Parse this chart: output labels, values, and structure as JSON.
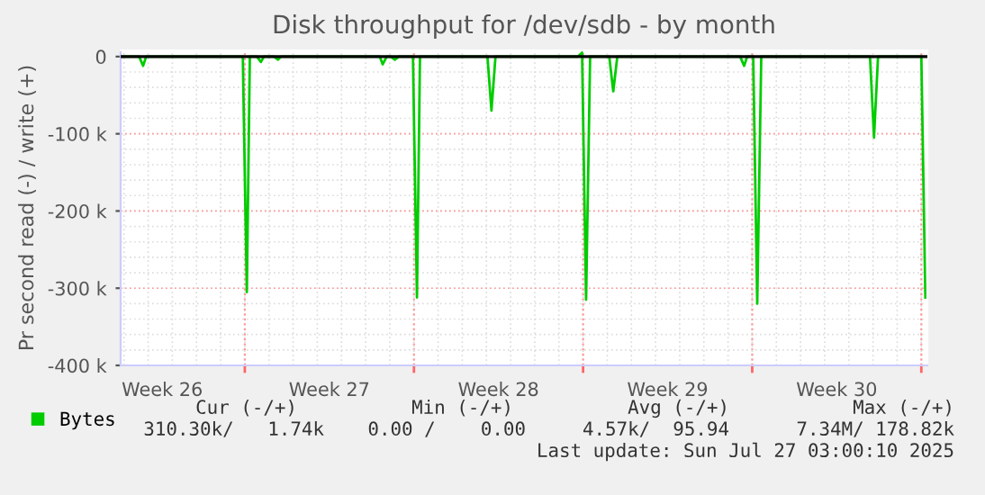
{
  "chart_data": {
    "type": "line",
    "title": "Disk throughput for /dev/sdb - by month",
    "ylabel": "Pr second read (-) / write (+)",
    "xlim": [
      "2025-06-24T20:40",
      "2025-07-28T06:00"
    ],
    "ylim": [
      -400000,
      8000
    ],
    "xticks": [
      {
        "value": "2025-06-26T14:00",
        "label": "Week 26"
      },
      {
        "value": "2025-07-03T12:00",
        "label": "Week 27"
      },
      {
        "value": "2025-07-10T12:00",
        "label": "Week 28"
      },
      {
        "value": "2025-07-17T12:00",
        "label": "Week 29"
      },
      {
        "value": "2025-07-24T12:00",
        "label": "Week 30"
      },
      {
        "value": "2025-06-30",
        "label": null
      },
      {
        "value": "2025-07-07",
        "label": null
      },
      {
        "value": "2025-07-14",
        "label": null
      },
      {
        "value": "2025-07-21",
        "label": null
      },
      {
        "value": "2025-07-28",
        "label": null
      }
    ],
    "yticks": [
      {
        "value": 0,
        "label": "0"
      },
      {
        "value": -100000,
        "label": "-100 k"
      },
      {
        "value": -200000,
        "label": "-200 k"
      },
      {
        "value": -300000,
        "label": "-300 k"
      },
      {
        "value": -400000,
        "label": "-400 k"
      }
    ],
    "grid": true,
    "legend": "bottom left",
    "series": [
      {
        "name": "Bytes",
        "color": "#00cc00",
        "x": [
          "2025-06-24T21:00",
          "2025-06-25T15:00",
          "2025-06-25T19:00",
          "2025-06-25T22:00",
          "2025-06-29T22:00",
          "2025-06-30T02:00",
          "2025-06-30T05:00",
          "2025-06-30T12:00",
          "2025-06-30T16:00",
          "2025-06-30T19:00",
          "2025-07-01T05:00",
          "2025-07-01T09:00",
          "2025-07-01T12:00",
          "2025-07-05T14:00",
          "2025-07-05T17:00",
          "2025-07-05T21:00",
          "2025-07-06T01:00",
          "2025-07-06T05:00",
          "2025-07-06T09:00",
          "2025-07-06T23:00",
          "2025-07-07T03:00",
          "2025-07-07T06:00",
          "2025-07-10T01:00",
          "2025-07-10T05:00",
          "2025-07-10T09:00",
          "2025-07-13T19:00",
          "2025-07-13T23:00",
          "2025-07-14T03:00",
          "2025-07-14T07:00",
          "2025-07-15T02:00",
          "2025-07-15T06:00",
          "2025-07-15T10:00",
          "2025-07-20T12:00",
          "2025-07-20T16:00",
          "2025-07-20T19:00",
          "2025-07-21T01:00",
          "2025-07-21T05:00",
          "2025-07-21T09:00",
          "2025-07-25T21:00",
          "2025-07-26T01:00",
          "2025-07-26T05:00",
          "2025-07-28T00:00",
          "2025-07-28T04:00"
        ],
        "values": [
          0,
          0,
          -12000,
          0,
          0,
          -305000,
          0,
          0,
          -7000,
          0,
          0,
          -4000,
          0,
          0,
          -10000,
          0,
          0,
          -4000,
          0,
          0,
          -312000,
          0,
          0,
          -70000,
          0,
          0,
          5000,
          -315000,
          0,
          0,
          -45000,
          0,
          0,
          -12000,
          0,
          0,
          -320000,
          0,
          0,
          -105000,
          0,
          0,
          -312000
        ]
      }
    ],
    "ref_lines": [
      {
        "axis": "y",
        "value": 0,
        "color": "#000000"
      }
    ],
    "annotations": [
      "Cur (-/+)",
      "Min (-/+)",
      "Avg (-/+)",
      "Max (-/+)",
      "310.30k/   1.74k",
      "0.00 /    0.00",
      "4.57k/  95.94",
      "7.34M/ 178.82k",
      "Last update: Sun Jul 27 03:00:10 2025"
    ]
  }
}
